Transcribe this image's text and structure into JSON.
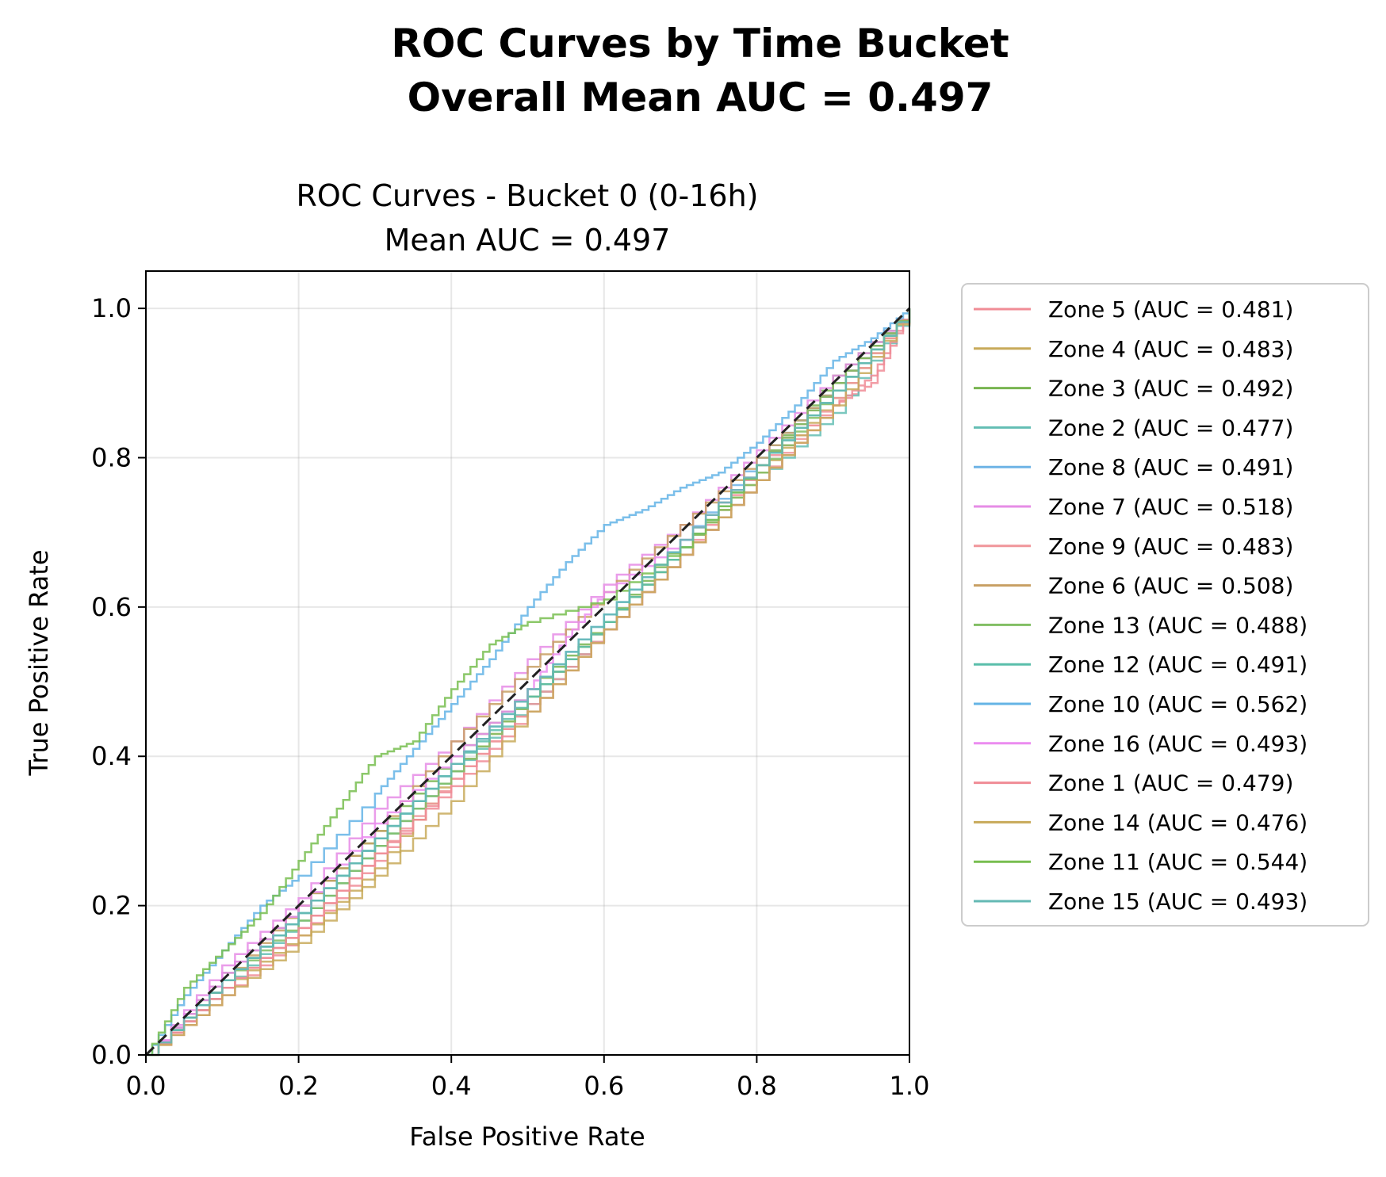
{
  "figure": {
    "suptitle_line1": "ROC Curves by Time Bucket",
    "suptitle_line2": "Overall Mean AUC = 0.497"
  },
  "chart_data": {
    "type": "line",
    "title_line1": "ROC Curves - Bucket 0 (0-16h)",
    "title_line2": "Mean AUC = 0.497",
    "xlabel": "False Positive Rate",
    "ylabel": "True Positive Rate",
    "xlim": [
      0.0,
      1.05
    ],
    "ylim": [
      0.0,
      1.05
    ],
    "display_xlim": [
      0.0,
      1.0
    ],
    "xticks": [
      "0.0",
      "0.2",
      "0.4",
      "0.6",
      "0.8",
      "1.0"
    ],
    "yticks": [
      "0.0",
      "0.2",
      "0.4",
      "0.6",
      "0.8",
      "1.0"
    ],
    "grid": true,
    "legend_position": "outside-right",
    "reference_line": {
      "x": [
        0,
        1
      ],
      "y": [
        0,
        1
      ],
      "color": "#222222",
      "style": "dashed"
    },
    "series": [
      {
        "name": "Zone 5 (AUC = 0.481)",
        "color": "#f08c96",
        "auc": 0.481,
        "points": [
          [
            0,
            0
          ],
          [
            0.1,
            0.08
          ],
          [
            0.2,
            0.16
          ],
          [
            0.3,
            0.26
          ],
          [
            0.4,
            0.37
          ],
          [
            0.5,
            0.47
          ],
          [
            0.6,
            0.57
          ],
          [
            0.7,
            0.67
          ],
          [
            0.8,
            0.79
          ],
          [
            0.9,
            0.87
          ],
          [
            0.95,
            0.9
          ],
          [
            1,
            1
          ]
        ]
      },
      {
        "name": "Zone 4 (AUC = 0.483)",
        "color": "#c8aa5a",
        "auc": 0.483,
        "points": [
          [
            0,
            0
          ],
          [
            0.1,
            0.09
          ],
          [
            0.2,
            0.16
          ],
          [
            0.3,
            0.25
          ],
          [
            0.4,
            0.38
          ],
          [
            0.5,
            0.48
          ],
          [
            0.6,
            0.58
          ],
          [
            0.7,
            0.68
          ],
          [
            0.8,
            0.78
          ],
          [
            0.9,
            0.88
          ],
          [
            1,
            1
          ]
        ]
      },
      {
        "name": "Zone 3 (AUC = 0.492)",
        "color": "#78b450",
        "auc": 0.492,
        "points": [
          [
            0,
            0
          ],
          [
            0.1,
            0.11
          ],
          [
            0.2,
            0.2
          ],
          [
            0.3,
            0.3
          ],
          [
            0.4,
            0.4
          ],
          [
            0.5,
            0.49
          ],
          [
            0.6,
            0.58
          ],
          [
            0.7,
            0.69
          ],
          [
            0.8,
            0.79
          ],
          [
            0.9,
            0.91
          ],
          [
            1,
            1
          ]
        ]
      },
      {
        "name": "Zone 2 (AUC = 0.477)",
        "color": "#64beb4",
        "auc": 0.477,
        "points": [
          [
            0,
            0
          ],
          [
            0.1,
            0.09
          ],
          [
            0.2,
            0.18
          ],
          [
            0.3,
            0.28
          ],
          [
            0.4,
            0.38
          ],
          [
            0.5,
            0.47
          ],
          [
            0.6,
            0.57
          ],
          [
            0.7,
            0.67
          ],
          [
            0.8,
            0.77
          ],
          [
            0.9,
            0.86
          ],
          [
            1,
            1
          ]
        ]
      },
      {
        "name": "Zone 8 (AUC = 0.491)",
        "color": "#6eb4e6",
        "auc": 0.491,
        "points": [
          [
            0,
            0
          ],
          [
            0.1,
            0.1
          ],
          [
            0.2,
            0.19
          ],
          [
            0.3,
            0.29
          ],
          [
            0.4,
            0.39
          ],
          [
            0.5,
            0.49
          ],
          [
            0.6,
            0.59
          ],
          [
            0.7,
            0.69
          ],
          [
            0.8,
            0.8
          ],
          [
            0.9,
            0.9
          ],
          [
            1,
            1
          ]
        ]
      },
      {
        "name": "Zone 7 (AUC = 0.518)",
        "color": "#e68ce6",
        "auc": 0.518,
        "points": [
          [
            0,
            0
          ],
          [
            0.1,
            0.12
          ],
          [
            0.2,
            0.21
          ],
          [
            0.3,
            0.33
          ],
          [
            0.4,
            0.42
          ],
          [
            0.5,
            0.53
          ],
          [
            0.6,
            0.63
          ],
          [
            0.7,
            0.71
          ],
          [
            0.8,
            0.81
          ],
          [
            0.9,
            0.91
          ],
          [
            1,
            1
          ]
        ]
      },
      {
        "name": "Zone 9 (AUC = 0.483)",
        "color": "#f0969b",
        "auc": 0.483,
        "points": [
          [
            0,
            0
          ],
          [
            0.1,
            0.09
          ],
          [
            0.2,
            0.17
          ],
          [
            0.3,
            0.27
          ],
          [
            0.4,
            0.37
          ],
          [
            0.5,
            0.47
          ],
          [
            0.6,
            0.57
          ],
          [
            0.7,
            0.67
          ],
          [
            0.8,
            0.77
          ],
          [
            0.9,
            0.88
          ],
          [
            1,
            1
          ]
        ]
      },
      {
        "name": "Zone 6 (AUC = 0.508)",
        "color": "#c8a064",
        "auc": 0.508,
        "points": [
          [
            0,
            0
          ],
          [
            0.1,
            0.1
          ],
          [
            0.2,
            0.2
          ],
          [
            0.3,
            0.3
          ],
          [
            0.4,
            0.42
          ],
          [
            0.5,
            0.52
          ],
          [
            0.6,
            0.62
          ],
          [
            0.7,
            0.71
          ],
          [
            0.8,
            0.8
          ],
          [
            0.9,
            0.9
          ],
          [
            1,
            1
          ]
        ]
      },
      {
        "name": "Zone 13 (AUC = 0.488)",
        "color": "#82be64",
        "auc": 0.488,
        "points": [
          [
            0,
            0
          ],
          [
            0.1,
            0.1
          ],
          [
            0.2,
            0.18
          ],
          [
            0.3,
            0.28
          ],
          [
            0.4,
            0.38
          ],
          [
            0.5,
            0.48
          ],
          [
            0.6,
            0.58
          ],
          [
            0.7,
            0.68
          ],
          [
            0.8,
            0.78
          ],
          [
            0.9,
            0.89
          ],
          [
            1,
            1
          ]
        ]
      },
      {
        "name": "Zone 12 (AUC = 0.491)",
        "color": "#5abeaa",
        "auc": 0.491,
        "points": [
          [
            0,
            0
          ],
          [
            0.1,
            0.1
          ],
          [
            0.2,
            0.19
          ],
          [
            0.3,
            0.29
          ],
          [
            0.4,
            0.39
          ],
          [
            0.5,
            0.48
          ],
          [
            0.6,
            0.58
          ],
          [
            0.7,
            0.68
          ],
          [
            0.8,
            0.79
          ],
          [
            0.9,
            0.89
          ],
          [
            1,
            1
          ]
        ]
      },
      {
        "name": "Zone 10 (AUC = 0.562)",
        "color": "#64b4e6",
        "auc": 0.562,
        "points": [
          [
            0,
            0
          ],
          [
            0.05,
            0.08
          ],
          [
            0.1,
            0.14
          ],
          [
            0.15,
            0.2
          ],
          [
            0.2,
            0.24
          ],
          [
            0.3,
            0.35
          ],
          [
            0.35,
            0.41
          ],
          [
            0.4,
            0.47
          ],
          [
            0.45,
            0.53
          ],
          [
            0.5,
            0.6
          ],
          [
            0.55,
            0.66
          ],
          [
            0.6,
            0.71
          ],
          [
            0.65,
            0.73
          ],
          [
            0.7,
            0.76
          ],
          [
            0.75,
            0.78
          ],
          [
            0.8,
            0.82
          ],
          [
            0.85,
            0.87
          ],
          [
            0.9,
            0.93
          ],
          [
            0.95,
            0.96
          ],
          [
            1,
            1
          ]
        ]
      },
      {
        "name": "Zone 16 (AUC = 0.493)",
        "color": "#eb8cf0",
        "auc": 0.493,
        "points": [
          [
            0,
            0
          ],
          [
            0.1,
            0.11
          ],
          [
            0.2,
            0.2
          ],
          [
            0.3,
            0.31
          ],
          [
            0.4,
            0.4
          ],
          [
            0.5,
            0.49
          ],
          [
            0.55,
            0.56
          ],
          [
            0.6,
            0.62
          ],
          [
            0.7,
            0.69
          ],
          [
            0.8,
            0.79
          ],
          [
            0.9,
            0.9
          ],
          [
            1,
            1
          ]
        ]
      },
      {
        "name": "Zone 1 (AUC = 0.479)",
        "color": "#f08c96",
        "auc": 0.479,
        "points": [
          [
            0,
            0
          ],
          [
            0.1,
            0.09
          ],
          [
            0.2,
            0.17
          ],
          [
            0.3,
            0.27
          ],
          [
            0.4,
            0.36
          ],
          [
            0.5,
            0.46
          ],
          [
            0.6,
            0.57
          ],
          [
            0.7,
            0.67
          ],
          [
            0.8,
            0.77
          ],
          [
            0.9,
            0.87
          ],
          [
            0.95,
            0.91
          ],
          [
            1,
            1
          ]
        ]
      },
      {
        "name": "Zone 14 (AUC = 0.476)",
        "color": "#c8aa5a",
        "auc": 0.476,
        "points": [
          [
            0,
            0
          ],
          [
            0.1,
            0.08
          ],
          [
            0.2,
            0.15
          ],
          [
            0.3,
            0.24
          ],
          [
            0.4,
            0.34
          ],
          [
            0.5,
            0.46
          ],
          [
            0.6,
            0.57
          ],
          [
            0.7,
            0.67
          ],
          [
            0.8,
            0.77
          ],
          [
            0.9,
            0.87
          ],
          [
            1,
            1
          ]
        ]
      },
      {
        "name": "Zone 11 (AUC = 0.544)",
        "color": "#78be50",
        "auc": 0.544,
        "points": [
          [
            0,
            0
          ],
          [
            0.05,
            0.09
          ],
          [
            0.1,
            0.14
          ],
          [
            0.15,
            0.19
          ],
          [
            0.2,
            0.26
          ],
          [
            0.25,
            0.33
          ],
          [
            0.3,
            0.4
          ],
          [
            0.35,
            0.42
          ],
          [
            0.4,
            0.49
          ],
          [
            0.45,
            0.55
          ],
          [
            0.5,
            0.58
          ],
          [
            0.6,
            0.61
          ],
          [
            0.7,
            0.68
          ],
          [
            0.8,
            0.79
          ],
          [
            0.9,
            0.9
          ],
          [
            1,
            1
          ]
        ]
      },
      {
        "name": "Zone 15 (AUC = 0.493)",
        "color": "#64b9b4",
        "auc": 0.493,
        "points": [
          [
            0,
            0
          ],
          [
            0.1,
            0.1
          ],
          [
            0.2,
            0.19
          ],
          [
            0.3,
            0.29
          ],
          [
            0.4,
            0.39
          ],
          [
            0.5,
            0.49
          ],
          [
            0.6,
            0.59
          ],
          [
            0.7,
            0.69
          ],
          [
            0.8,
            0.79
          ],
          [
            0.9,
            0.89
          ],
          [
            1,
            1
          ]
        ]
      }
    ]
  }
}
